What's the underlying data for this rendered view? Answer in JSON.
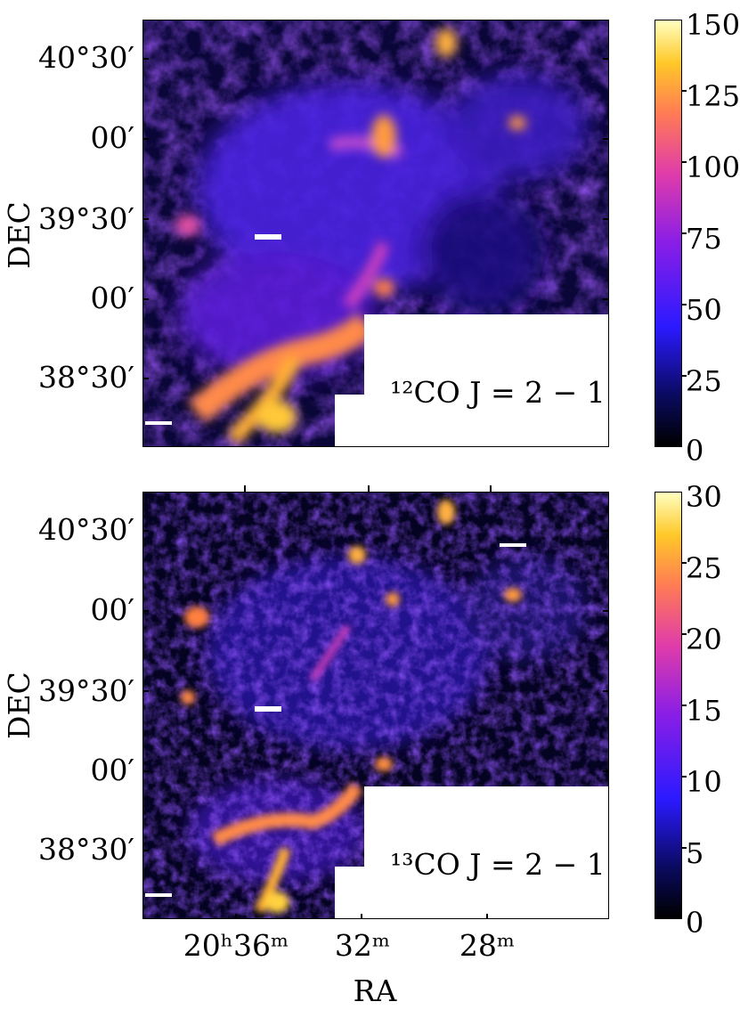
{
  "panels": [
    {
      "label": "¹²CO J = 2 − 1",
      "colorbar_ticks": [
        "150",
        "125",
        "100",
        "75",
        "50",
        "25",
        "0"
      ]
    },
    {
      "label": "¹³CO J = 2 − 1",
      "colorbar_ticks": [
        "30",
        "25",
        "20",
        "15",
        "10",
        "5",
        "0"
      ]
    }
  ],
  "dec_ticks": [
    "40°30′",
    "00′",
    "39°30′",
    "00′",
    "38°30′"
  ],
  "ra_ticks": [
    "20ʰ36ᵐ",
    "32ᵐ",
    "28ᵐ"
  ],
  "axis": {
    "ylabel": "DEC",
    "xlabel": "RA"
  },
  "colormap": {
    "low": "#000000",
    "mid": "#2b1aff",
    "high": "#ffffc0"
  }
}
